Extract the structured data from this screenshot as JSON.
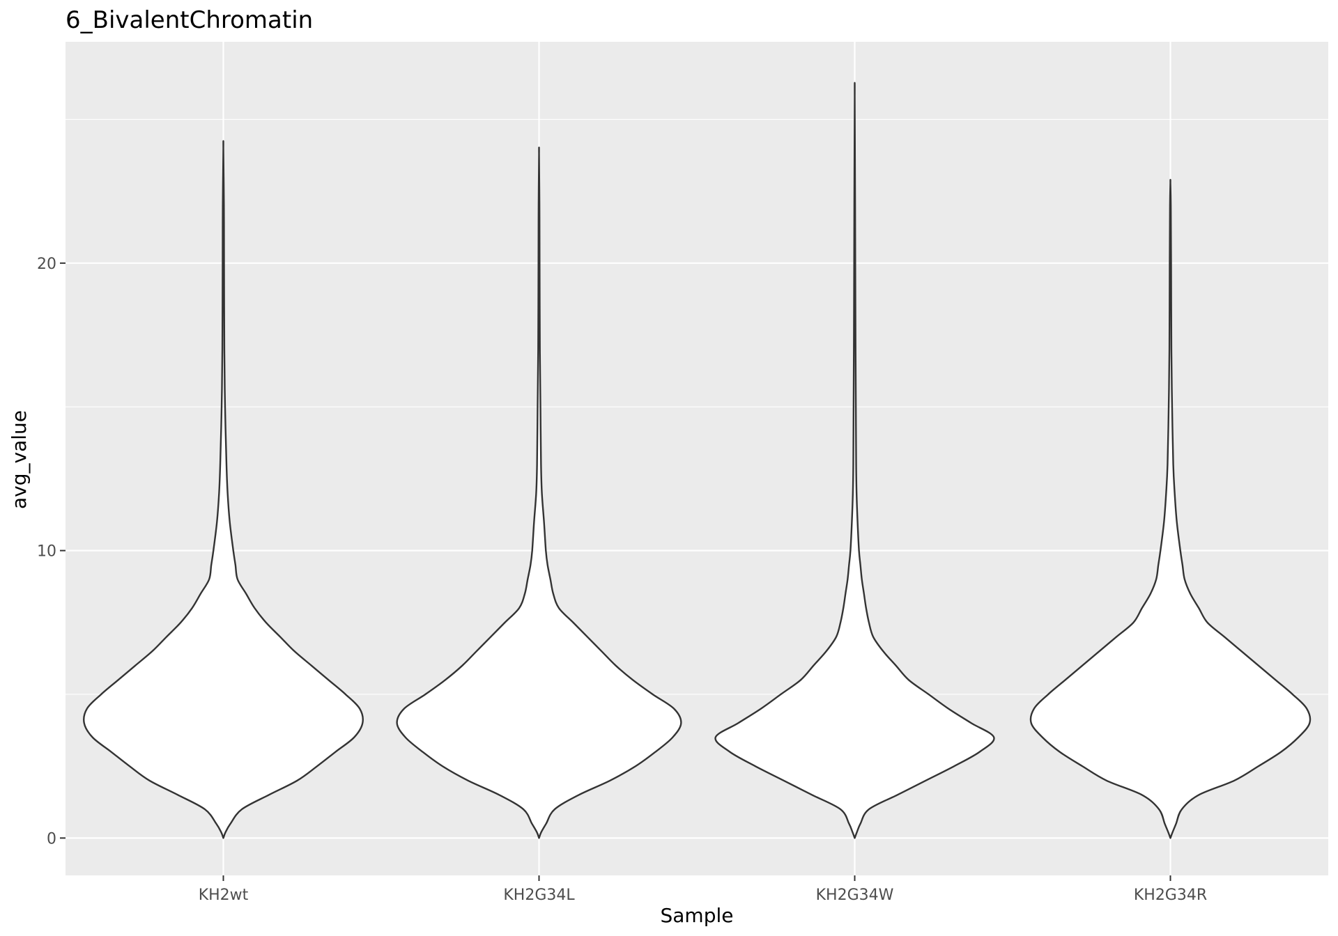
{
  "chart_data": {
    "type": "violin",
    "title": "6_BivalentChromatin",
    "xlabel": "Sample",
    "ylabel": "avg_value",
    "categories": [
      "KH2wt",
      "KH2G34L",
      "KH2G34W",
      "KH2G34R"
    ],
    "ylim": [
      -1.3,
      27.7
    ],
    "yticks": [
      0,
      10,
      20
    ],
    "grid": true,
    "background": "#ebebeb",
    "gridline_color": "#ffffff",
    "violin_fill": "#ffffff",
    "violin_outline": "#333333",
    "tick_color": "#333333",
    "series": [
      {
        "category": "KH2wt",
        "max": 24.0,
        "profile": [
          [
            0,
            0.0
          ],
          [
            0.2,
            0.015
          ],
          [
            0.5,
            0.05
          ],
          [
            1.0,
            0.13
          ],
          [
            1.5,
            0.32
          ],
          [
            2.0,
            0.52
          ],
          [
            2.5,
            0.66
          ],
          [
            3.0,
            0.79
          ],
          [
            3.5,
            0.92
          ],
          [
            4.0,
            0.98
          ],
          [
            4.5,
            0.96
          ],
          [
            5.0,
            0.86
          ],
          [
            5.5,
            0.74
          ],
          [
            6.0,
            0.62
          ],
          [
            6.5,
            0.5
          ],
          [
            7.0,
            0.4
          ],
          [
            7.5,
            0.3
          ],
          [
            8.0,
            0.22
          ],
          [
            8.5,
            0.16
          ],
          [
            9.0,
            0.1
          ],
          [
            9.5,
            0.085
          ],
          [
            10.0,
            0.07
          ],
          [
            11.0,
            0.045
          ],
          [
            12.0,
            0.03
          ],
          [
            13.0,
            0.022
          ],
          [
            15.0,
            0.012
          ],
          [
            17.0,
            0.007
          ],
          [
            20.0,
            0.005
          ],
          [
            22.0,
            0.004
          ],
          [
            24.0,
            0.0
          ]
        ]
      },
      {
        "category": "KH2G34L",
        "max": 23.8,
        "profile": [
          [
            0,
            0.0
          ],
          [
            0.2,
            0.015
          ],
          [
            0.5,
            0.05
          ],
          [
            1.0,
            0.11
          ],
          [
            1.5,
            0.28
          ],
          [
            2.0,
            0.5
          ],
          [
            2.5,
            0.68
          ],
          [
            3.0,
            0.82
          ],
          [
            3.5,
            0.94
          ],
          [
            4.0,
            1.0
          ],
          [
            4.5,
            0.95
          ],
          [
            5.0,
            0.8
          ],
          [
            5.5,
            0.66
          ],
          [
            6.0,
            0.54
          ],
          [
            6.5,
            0.44
          ],
          [
            7.0,
            0.34
          ],
          [
            7.5,
            0.24
          ],
          [
            8.0,
            0.14
          ],
          [
            8.5,
            0.1
          ],
          [
            9.0,
            0.08
          ],
          [
            9.5,
            0.06
          ],
          [
            10.0,
            0.048
          ],
          [
            11.0,
            0.035
          ],
          [
            12.0,
            0.02
          ],
          [
            13.0,
            0.014
          ],
          [
            15.0,
            0.01
          ],
          [
            17.0,
            0.006
          ],
          [
            20.0,
            0.004
          ],
          [
            22.0,
            0.003
          ],
          [
            23.8,
            0.0
          ]
        ]
      },
      {
        "category": "KH2G34W",
        "max": 25.8,
        "profile": [
          [
            0,
            0.0
          ],
          [
            0.2,
            0.015
          ],
          [
            0.5,
            0.04
          ],
          [
            1.0,
            0.1
          ],
          [
            1.5,
            0.3
          ],
          [
            2.0,
            0.5
          ],
          [
            2.5,
            0.7
          ],
          [
            3.0,
            0.88
          ],
          [
            3.5,
            0.98
          ],
          [
            4.0,
            0.82
          ],
          [
            4.5,
            0.66
          ],
          [
            5.0,
            0.52
          ],
          [
            5.5,
            0.38
          ],
          [
            6.0,
            0.29
          ],
          [
            6.5,
            0.2
          ],
          [
            7.0,
            0.13
          ],
          [
            7.5,
            0.1
          ],
          [
            8.0,
            0.08
          ],
          [
            8.5,
            0.065
          ],
          [
            9.0,
            0.05
          ],
          [
            9.5,
            0.04
          ],
          [
            10.0,
            0.03
          ],
          [
            11.0,
            0.02
          ],
          [
            12.0,
            0.013
          ],
          [
            13.0,
            0.01
          ],
          [
            15.0,
            0.008
          ],
          [
            17.0,
            0.006
          ],
          [
            20.0,
            0.004
          ],
          [
            22.0,
            0.003
          ],
          [
            25.8,
            0.0
          ]
        ]
      },
      {
        "category": "KH2G34R",
        "max": 22.8,
        "profile": [
          [
            0,
            0.0
          ],
          [
            0.2,
            0.015
          ],
          [
            0.5,
            0.04
          ],
          [
            1.0,
            0.08
          ],
          [
            1.5,
            0.2
          ],
          [
            2.0,
            0.45
          ],
          [
            2.5,
            0.62
          ],
          [
            3.0,
            0.78
          ],
          [
            3.5,
            0.9
          ],
          [
            4.0,
            0.98
          ],
          [
            4.5,
            0.96
          ],
          [
            5.0,
            0.86
          ],
          [
            5.5,
            0.74
          ],
          [
            6.0,
            0.62
          ],
          [
            6.5,
            0.5
          ],
          [
            7.0,
            0.38
          ],
          [
            7.5,
            0.26
          ],
          [
            8.0,
            0.2
          ],
          [
            8.5,
            0.14
          ],
          [
            9.0,
            0.1
          ],
          [
            9.5,
            0.085
          ],
          [
            10.0,
            0.07
          ],
          [
            11.0,
            0.045
          ],
          [
            12.0,
            0.03
          ],
          [
            13.0,
            0.02
          ],
          [
            15.0,
            0.012
          ],
          [
            17.0,
            0.007
          ],
          [
            20.0,
            0.005
          ],
          [
            22.0,
            0.003
          ],
          [
            22.8,
            0.0
          ]
        ]
      }
    ]
  }
}
